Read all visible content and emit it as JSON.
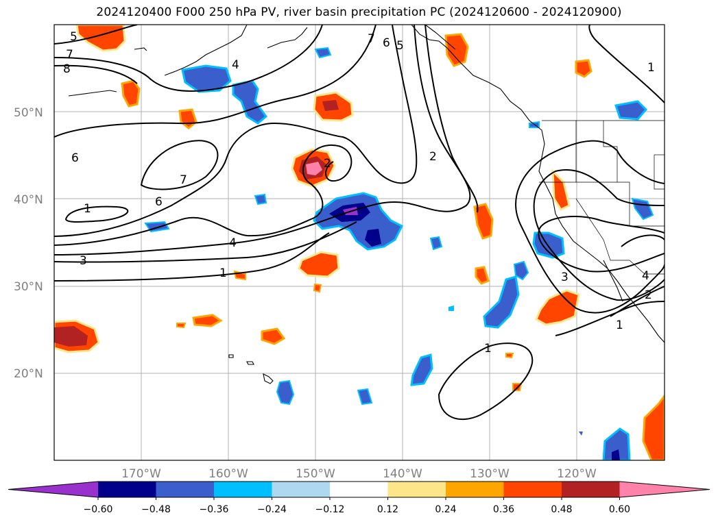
{
  "title": "2024120400 F000 250 hPa PV, river basin precipitation PC (2024120600 - 2024120900)",
  "map": {
    "lon_range": [
      -180,
      -110
    ],
    "lat_range": [
      10,
      60
    ],
    "lat_ticks": [
      {
        "value": 20,
        "label": "20°N"
      },
      {
        "value": 30,
        "label": "30°N"
      },
      {
        "value": 40,
        "label": "40°N"
      },
      {
        "value": 50,
        "label": "50°N"
      }
    ],
    "lon_ticks": [
      {
        "value": -170,
        "label": "170°W"
      },
      {
        "value": -160,
        "label": "160°W"
      },
      {
        "value": -150,
        "label": "150°W"
      },
      {
        "value": -140,
        "label": "140°W"
      },
      {
        "value": -130,
        "label": "130°W"
      },
      {
        "value": -120,
        "label": "120°W"
      }
    ],
    "grid": true
  },
  "colorbar": {
    "levels": [
      "−0.60",
      "−0.48",
      "−0.36",
      "−0.24",
      "−0.12",
      "0.12",
      "0.24",
      "0.36",
      "0.48",
      "0.60"
    ],
    "colors": [
      "#9932cc",
      "#00008b",
      "#3a5fcd",
      "#00bfff",
      "#add8f0",
      "#ffffff",
      "#fde68a",
      "#ffa500",
      "#ff4500",
      "#b22222",
      "#ff82ab"
    ],
    "extend": "both"
  },
  "contour_labels": [
    "5",
    "7",
    "8",
    "4",
    "6",
    "7",
    "1",
    "6",
    "4",
    "3",
    "1",
    "7",
    "6",
    "5",
    "2",
    "2",
    "1",
    "1",
    "3",
    "4",
    "2",
    "1"
  ]
}
